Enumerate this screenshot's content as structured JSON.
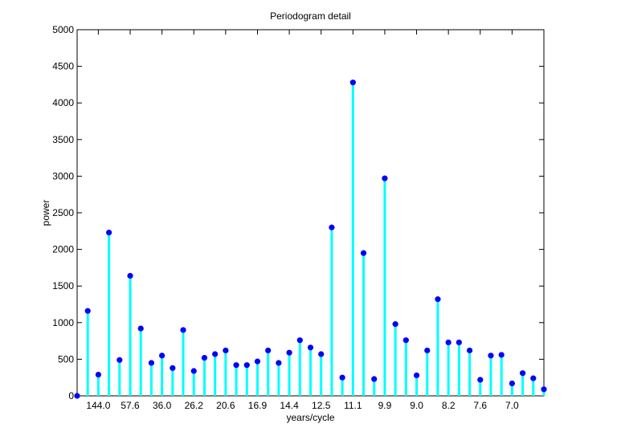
{
  "chart_data": {
    "type": "stem",
    "title": "Periodogram detail",
    "xlabel": "years/cycle",
    "ylabel": "power",
    "ylim": [
      0,
      5000
    ],
    "yticks": [
      0,
      500,
      1000,
      1500,
      2000,
      2500,
      3000,
      3500,
      4000,
      4500,
      5000
    ],
    "xlim": [
      0,
      44
    ],
    "xtick_positions": [
      2,
      5,
      8,
      11,
      14,
      17,
      20,
      23,
      26,
      29,
      32,
      35,
      38,
      41
    ],
    "xtick_labels": [
      "144.0",
      "57.6",
      "36.0",
      "26.2",
      "20.6",
      "16.9",
      "14.4",
      "12.5",
      "11.1",
      "9.9",
      "9.0",
      "8.2",
      "7.6",
      "7.0"
    ],
    "grid": false,
    "stem_color": "#00ffff",
    "marker_color": "#0000ff",
    "series": [
      {
        "x": [
          0,
          1,
          2,
          3,
          4,
          5,
          6,
          7,
          8,
          9,
          10,
          11,
          12,
          13,
          14,
          15,
          16,
          17,
          18,
          19,
          20,
          21,
          22,
          23,
          24,
          25,
          26,
          27,
          28,
          29,
          30,
          31,
          32,
          33,
          34,
          35,
          36,
          37,
          38,
          39,
          40,
          41,
          42,
          43,
          44
        ],
        "values": [
          0,
          1160,
          290,
          2230,
          490,
          1640,
          920,
          450,
          550,
          380,
          900,
          340,
          520,
          570,
          620,
          420,
          420,
          470,
          620,
          450,
          590,
          760,
          660,
          570,
          2300,
          250,
          4280,
          1950,
          230,
          2970,
          980,
          760,
          280,
          620,
          1320,
          730,
          730,
          620,
          220,
          550,
          560,
          170,
          310,
          240,
          90
        ]
      }
    ]
  }
}
